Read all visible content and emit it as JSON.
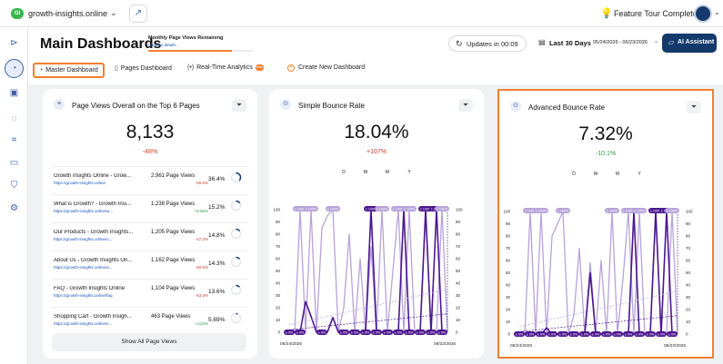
{
  "topbar": {
    "site_badge": "GI",
    "site_name": "growth-insights.online",
    "tour_status": "Feature Tour Completed!"
  },
  "header": {
    "title": "Main Dashboards",
    "page_views_title": "Monthly Page Views Remaining",
    "page_views_link": "Click for details.",
    "page_views_used_fraction": 0.8,
    "refresh_label": "Updates in 00:09",
    "range_label": "Last 30 Days",
    "range_dates": "05/24/2026 - 06/23/2026",
    "ai_button": "AI Assistant"
  },
  "tabs": [
    {
      "label": "Master Dashboard",
      "icon": "gauge-icon",
      "active": true
    },
    {
      "label": "Pages Dashboard",
      "icon": "page-icon",
      "active": false
    },
    {
      "label": "Real-Time Analytics",
      "icon": "pulse-icon",
      "active": false,
      "badge": "Beta"
    },
    {
      "label": "Create New Dashboard",
      "icon": "plus-circle-icon",
      "active": false
    }
  ],
  "cards": {
    "page_views": {
      "title": "Page Views Overall on the Top 6 Pages",
      "value": "8,133",
      "delta": "-48%",
      "rows": [
        {
          "title": "Growth Insights Online - Grow...",
          "url": "https://growth-insights.online",
          "views": "2,961 Page Views",
          "delta": "-65.6%",
          "pct": "36.4%",
          "fraction": 0.364
        },
        {
          "title": "What is Growth? - Growth Insi...",
          "url": "https://growth-insights.online/w...",
          "views": "1,238 Page Views",
          "delta": "+9.55%",
          "pct": "15.2%",
          "fraction": 0.152
        },
        {
          "title": "Our Products - Growth Insights...",
          "url": "https://growth-insights.online/o...",
          "views": "1,205 Page Views",
          "delta": "-57.3%",
          "pct": "14.8%",
          "fraction": 0.148
        },
        {
          "title": "About Us - Growth Insights On...",
          "url": "https://growth-insights.online/a...",
          "views": "1,162 Page Views",
          "delta": "-60.5%",
          "pct": "14.3%",
          "fraction": 0.143
        },
        {
          "title": "FAQ - Growth Insights Online",
          "url": "https://growth-insights.online/faq",
          "views": "1,104 Page Views",
          "delta": "-63.3%",
          "pct": "13.6%",
          "fraction": 0.136
        },
        {
          "title": "Shopping Cart - Growth Insigh...",
          "url": "https://growth-insights.online/s...",
          "views": "463 Page Views",
          "delta": "+134%",
          "pct": "5.69%",
          "fraction": 0.0569
        }
      ],
      "show_all": "Show All Page Views"
    },
    "simple_bounce": {
      "title": "Simple Bounce Rate",
      "value": "18.04%",
      "delta": "+107%",
      "periods": [
        "D",
        "W",
        "M",
        "Y"
      ]
    },
    "advanced_bounce": {
      "title": "Advanced Bounce Rate",
      "value": "7.32%",
      "delta": "-10.1%",
      "periods": [
        "D",
        "W",
        "M",
        "Y"
      ]
    }
  },
  "chart_data": [
    {
      "type": "line",
      "title": "Simple Bounce Rate",
      "ylim": [
        0,
        100
      ],
      "y_ticks": [
        "0",
        "10",
        "20",
        "30",
        "40",
        "50",
        "60",
        "70",
        "80",
        "90",
        "100"
      ],
      "x_start": "05/24/2026",
      "x_end": "06/22/2026",
      "series": [
        {
          "values": [
            0,
            0,
            100,
            0,
            100,
            0,
            85,
            95,
            100,
            0,
            20,
            80,
            0,
            60,
            0,
            70,
            0,
            100,
            0,
            50,
            100,
            0,
            100,
            0,
            0,
            100,
            0,
            0,
            100,
            0
          ],
          "color": "#b7a3d9"
        },
        {
          "values": [
            0,
            0,
            0,
            25,
            13,
            0,
            0,
            0,
            12,
            0,
            0,
            0,
            0,
            0,
            0,
            100,
            0,
            0,
            0,
            0,
            0,
            100,
            0,
            0,
            0,
            100,
            0,
            100,
            0,
            0
          ],
          "color": "#4b168f"
        }
      ],
      "point_labels_sample": [
        "1 100%",
        "1 85%",
        "1 95%",
        "1 100%",
        "26.2%",
        "13.7%",
        "1 100%",
        "1 100%",
        "1 100%",
        "± 0%"
      ]
    },
    {
      "type": "line",
      "title": "Advanced Bounce Rate",
      "ylim": [
        0,
        100
      ],
      "y_ticks": [
        "0",
        "10",
        "20",
        "30",
        "40",
        "50",
        "60",
        "70",
        "80",
        "90",
        "100"
      ],
      "x_start": "05/24/2026",
      "x_end": "06/22/2026",
      "series": [
        {
          "values": [
            0,
            0,
            100,
            0,
            100,
            0,
            80,
            90,
            100,
            0,
            15,
            70,
            0,
            58,
            0,
            60,
            0,
            100,
            0,
            45,
            100,
            0,
            100,
            0,
            0,
            100,
            0,
            0,
            100,
            0
          ],
          "color": "#b7a3d9"
        },
        {
          "values": [
            0,
            0,
            0,
            0,
            0,
            5,
            0,
            0,
            0,
            0,
            0,
            0,
            0,
            50,
            0,
            0,
            0,
            0,
            0,
            0,
            0,
            100,
            0,
            0,
            0,
            100,
            0,
            100,
            0,
            0
          ],
          "color": "#4b168f"
        }
      ],
      "point_labels_sample": [
        "1 100%",
        "1 90%",
        "1 100%",
        "50%",
        "5.9%",
        "1 100%",
        "1 100%",
        "1 100%",
        "± 0%"
      ]
    }
  ]
}
